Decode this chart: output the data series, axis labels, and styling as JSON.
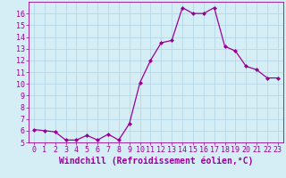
{
  "x": [
    0,
    1,
    2,
    3,
    4,
    5,
    6,
    7,
    8,
    9,
    10,
    11,
    12,
    13,
    14,
    15,
    16,
    17,
    18,
    19,
    20,
    21,
    22,
    23
  ],
  "y": [
    6.1,
    6.0,
    5.9,
    5.2,
    5.2,
    5.6,
    5.2,
    5.7,
    5.2,
    6.6,
    10.1,
    12.0,
    13.5,
    13.7,
    16.5,
    16.0,
    16.0,
    16.5,
    13.2,
    12.8,
    11.5,
    11.2,
    10.5,
    10.5
  ],
  "line_color": "#990099",
  "marker": "D",
  "marker_size": 2,
  "bg_color": "#d5eef5",
  "grid_color": "#b8d8e8",
  "tick_color": "#990099",
  "label_color": "#990099",
  "xlabel": "Windchill (Refroidissement éolien,°C)",
  "ylim": [
    5,
    17
  ],
  "xlim": [
    -0.5,
    23.5
  ],
  "yticks": [
    5,
    6,
    7,
    8,
    9,
    10,
    11,
    12,
    13,
    14,
    15,
    16
  ],
  "xticks": [
    0,
    1,
    2,
    3,
    4,
    5,
    6,
    7,
    8,
    9,
    10,
    11,
    12,
    13,
    14,
    15,
    16,
    17,
    18,
    19,
    20,
    21,
    22,
    23
  ],
  "xlabel_fontsize": 7,
  "tick_fontsize": 6
}
